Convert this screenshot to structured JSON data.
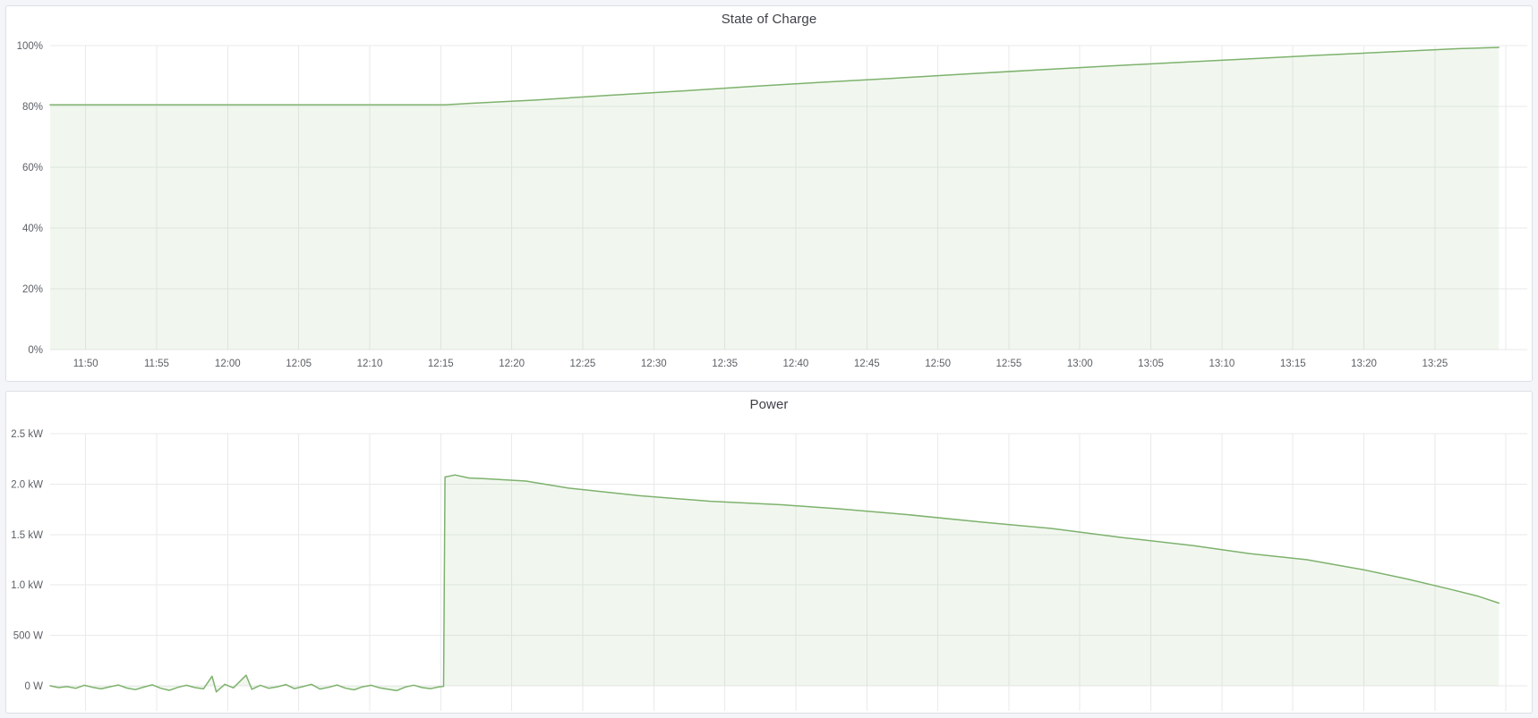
{
  "colors": {
    "series_line": "#7eb26d",
    "series_fill": "rgba(126,178,109,0.11)",
    "grid": "#e9eaeb",
    "page_background": "#f4f5f9",
    "panel_background": "#ffffff",
    "panel_border": "#dcdfe5",
    "title_text": "#3e4148",
    "tick_text": "#5c6066"
  },
  "chart_data": [
    {
      "type": "area",
      "title": "State of Charge",
      "ylabel": "",
      "xlabel": "",
      "unit": "%",
      "grid": true,
      "legend": "none",
      "ylim": [
        0,
        100
      ],
      "y_ticks": [
        {
          "v": 0,
          "label": "0%"
        },
        {
          "v": 20,
          "label": "20%"
        },
        {
          "v": 40,
          "label": "40%"
        },
        {
          "v": 60,
          "label": "60%"
        },
        {
          "v": 80,
          "label": "80%"
        },
        {
          "v": 100,
          "label": "100%"
        }
      ],
      "x_ticks": [
        {
          "t": 710,
          "label": "11:50"
        },
        {
          "t": 715,
          "label": "11:55"
        },
        {
          "t": 720,
          "label": "12:00"
        },
        {
          "t": 725,
          "label": "12:05"
        },
        {
          "t": 730,
          "label": "12:10"
        },
        {
          "t": 735,
          "label": "12:15"
        },
        {
          "t": 740,
          "label": "12:20"
        },
        {
          "t": 745,
          "label": "12:25"
        },
        {
          "t": 750,
          "label": "12:30"
        },
        {
          "t": 755,
          "label": "12:35"
        },
        {
          "t": 760,
          "label": "12:40"
        },
        {
          "t": 765,
          "label": "12:45"
        },
        {
          "t": 770,
          "label": "12:50"
        },
        {
          "t": 775,
          "label": "12:55"
        },
        {
          "t": 780,
          "label": "13:00"
        },
        {
          "t": 785,
          "label": "13:05"
        },
        {
          "t": 790,
          "label": "13:10"
        },
        {
          "t": 795,
          "label": "13:15"
        },
        {
          "t": 800,
          "label": "13:20"
        },
        {
          "t": 805,
          "label": "13:25"
        },
        {
          "t": 810,
          "label": ""
        }
      ],
      "x_range_minutes": [
        707.5,
        811.5
      ],
      "show_x_labels": true,
      "series": [
        {
          "name": "State of Charge",
          "points": [
            [
              707.5,
              80.5
            ],
            [
              712,
              80.5
            ],
            [
              717,
              80.5
            ],
            [
              722,
              80.5
            ],
            [
              727,
              80.5
            ],
            [
              732,
              80.5
            ],
            [
              735.3,
              80.5
            ],
            [
              737,
              81.0
            ],
            [
              741.7,
              82.1
            ],
            [
              746.7,
              83.6
            ],
            [
              751.7,
              85.0
            ],
            [
              756.7,
              86.5
            ],
            [
              761.7,
              87.9
            ],
            [
              766.7,
              89.2
            ],
            [
              771.7,
              90.6
            ],
            [
              776.7,
              91.9
            ],
            [
              781.7,
              93.2
            ],
            [
              786.7,
              94.4
            ],
            [
              791.7,
              95.6
            ],
            [
              796.7,
              96.8
            ],
            [
              801.7,
              97.9
            ],
            [
              806.7,
              99.0
            ],
            [
              809.5,
              99.4
            ]
          ]
        }
      ]
    },
    {
      "type": "area",
      "title": "Power",
      "ylabel": "",
      "xlabel": "",
      "unit": "W",
      "grid": true,
      "legend": "none",
      "ylim": [
        -275,
        2500
      ],
      "y_ticks": [
        {
          "v": 0,
          "label": "0 W"
        },
        {
          "v": 500,
          "label": "500 W"
        },
        {
          "v": 1000,
          "label": "1.0 kW"
        },
        {
          "v": 1500,
          "label": "1.5 kW"
        },
        {
          "v": 2000,
          "label": "2.0 kW"
        },
        {
          "v": 2500,
          "label": "2.5 kW"
        }
      ],
      "x_ticks": [
        {
          "t": 710,
          "label": "11:50"
        },
        {
          "t": 715,
          "label": "11:55"
        },
        {
          "t": 720,
          "label": "12:00"
        },
        {
          "t": 725,
          "label": "12:05"
        },
        {
          "t": 730,
          "label": "12:10"
        },
        {
          "t": 735,
          "label": "12:15"
        },
        {
          "t": 740,
          "label": "12:20"
        },
        {
          "t": 745,
          "label": "12:25"
        },
        {
          "t": 750,
          "label": "12:30"
        },
        {
          "t": 755,
          "label": "12:35"
        },
        {
          "t": 760,
          "label": "12:40"
        },
        {
          "t": 765,
          "label": "12:45"
        },
        {
          "t": 770,
          "label": "12:50"
        },
        {
          "t": 775,
          "label": "12:55"
        },
        {
          "t": 780,
          "label": "13:00"
        },
        {
          "t": 785,
          "label": "13:05"
        },
        {
          "t": 790,
          "label": "13:10"
        },
        {
          "t": 795,
          "label": "13:15"
        },
        {
          "t": 800,
          "label": "13:20"
        },
        {
          "t": 805,
          "label": "13:25"
        },
        {
          "t": 810,
          "label": ""
        }
      ],
      "x_range_minutes": [
        707.5,
        811.5
      ],
      "show_x_labels": false,
      "series": [
        {
          "name": "Power",
          "points": [
            [
              707.5,
              0
            ],
            [
              708.1,
              -18
            ],
            [
              708.7,
              -8
            ],
            [
              709.3,
              -25
            ],
            [
              709.9,
              5
            ],
            [
              710.5,
              -15
            ],
            [
              711.1,
              -30
            ],
            [
              711.7,
              -10
            ],
            [
              712.3,
              8
            ],
            [
              712.9,
              -22
            ],
            [
              713.5,
              -38
            ],
            [
              714.1,
              -12
            ],
            [
              714.7,
              10
            ],
            [
              715.3,
              -25
            ],
            [
              715.9,
              -45
            ],
            [
              716.5,
              -15
            ],
            [
              717.1,
              5
            ],
            [
              717.7,
              -18
            ],
            [
              718.3,
              -30
            ],
            [
              718.9,
              95
            ],
            [
              719.2,
              -60
            ],
            [
              719.8,
              15
            ],
            [
              720.4,
              -20
            ],
            [
              721.3,
              105
            ],
            [
              721.7,
              -35
            ],
            [
              722.3,
              5
            ],
            [
              722.9,
              -25
            ],
            [
              723.5,
              -10
            ],
            [
              724.1,
              12
            ],
            [
              724.7,
              -28
            ],
            [
              725.3,
              -8
            ],
            [
              725.9,
              15
            ],
            [
              726.5,
              -32
            ],
            [
              727.1,
              -15
            ],
            [
              727.7,
              8
            ],
            [
              728.3,
              -24
            ],
            [
              728.9,
              -40
            ],
            [
              729.5,
              -10
            ],
            [
              730.1,
              5
            ],
            [
              730.7,
              -20
            ],
            [
              731.3,
              -35
            ],
            [
              731.9,
              -48
            ],
            [
              732.5,
              -12
            ],
            [
              733.1,
              6
            ],
            [
              733.7,
              -18
            ],
            [
              734.3,
              -28
            ],
            [
              734.9,
              -10
            ],
            [
              735.2,
              -5
            ],
            [
              735.3,
              2070
            ],
            [
              736,
              2090
            ],
            [
              737,
              2060
            ],
            [
              738,
              2055
            ],
            [
              741,
              2030
            ],
            [
              744,
              1960
            ],
            [
              749,
              1885
            ],
            [
              754,
              1830
            ],
            [
              759,
              1795
            ],
            [
              763,
              1755
            ],
            [
              768,
              1695
            ],
            [
              773,
              1625
            ],
            [
              778,
              1560
            ],
            [
              783,
              1470
            ],
            [
              788,
              1390
            ],
            [
              792,
              1310
            ],
            [
              796,
              1250
            ],
            [
              800,
              1150
            ],
            [
              803,
              1060
            ],
            [
              806,
              960
            ],
            [
              808,
              890
            ],
            [
              809.5,
              820
            ]
          ]
        }
      ]
    }
  ]
}
